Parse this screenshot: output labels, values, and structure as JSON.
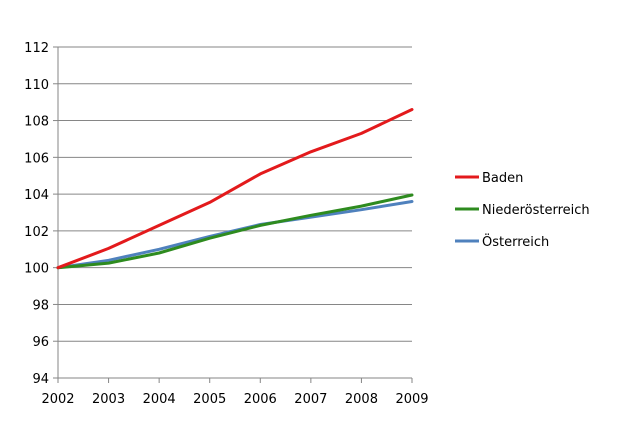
{
  "chart_data": {
    "type": "line",
    "title": "",
    "xlabel": "",
    "ylabel": "",
    "x": [
      "2002",
      "2003",
      "2004",
      "2005",
      "2006",
      "2007",
      "2008",
      "2009"
    ],
    "ylim": [
      94,
      112
    ],
    "yticks": [
      "94",
      "96",
      "98",
      "100",
      "102",
      "104",
      "106",
      "108",
      "110",
      "112"
    ],
    "grid": "horizontal",
    "legend_position": "right",
    "series": [
      {
        "name": "Baden",
        "color": "#e31a1c",
        "values": [
          100.0,
          101.05,
          102.3,
          103.55,
          105.1,
          106.3,
          107.3,
          108.6
        ]
      },
      {
        "name": "Niederösterreich",
        "color": "#2e8b1f",
        "values": [
          100.0,
          100.25,
          100.8,
          101.6,
          102.3,
          102.85,
          103.35,
          103.95
        ]
      },
      {
        "name": "Österreich",
        "color": "#4f81bd",
        "values": [
          100.0,
          100.4,
          101.0,
          101.7,
          102.35,
          102.75,
          103.15,
          103.6
        ]
      }
    ]
  }
}
